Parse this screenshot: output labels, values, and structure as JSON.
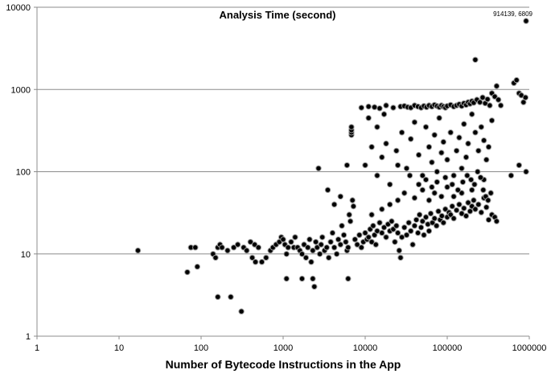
{
  "chart_data": {
    "type": "scatter",
    "title": "Analysis Time (second)",
    "xlabel": "Number of Bytecode Instructions in the App",
    "ylabel": "",
    "x_scale": "log",
    "y_scale": "log",
    "xlim": [
      1,
      1000000
    ],
    "ylim": [
      1,
      10000
    ],
    "x_ticks": [
      "1",
      "10",
      "100",
      "1000",
      "10000",
      "100000",
      "1000000"
    ],
    "y_ticks": [
      "1",
      "10",
      "100",
      "1000",
      "10000"
    ],
    "grid": "horizontal",
    "legend": "none",
    "marker_color": "#000000",
    "annotation": {
      "text": "914139, 6809",
      "x": 914139,
      "y": 6809
    },
    "series": [
      {
        "points": [
          [
            17,
            11
          ],
          [
            68,
            6
          ],
          [
            75,
            12
          ],
          [
            85,
            12
          ],
          [
            90,
            7
          ],
          [
            140,
            10
          ],
          [
            150,
            9
          ],
          [
            160,
            12
          ],
          [
            170,
            13
          ],
          [
            180,
            12
          ],
          [
            160,
            3
          ],
          [
            230,
            3
          ],
          [
            310,
            2
          ],
          [
            210,
            11
          ],
          [
            250,
            12
          ],
          [
            280,
            13
          ],
          [
            330,
            12
          ],
          [
            360,
            11
          ],
          [
            400,
            14
          ],
          [
            450,
            13
          ],
          [
            500,
            12
          ],
          [
            420,
            9
          ],
          [
            460,
            8
          ],
          [
            550,
            8
          ],
          [
            620,
            9
          ],
          [
            700,
            11
          ],
          [
            750,
            12
          ],
          [
            820,
            13
          ],
          [
            900,
            14
          ],
          [
            950,
            16
          ],
          [
            1000,
            15
          ],
          [
            1050,
            13
          ],
          [
            1100,
            10
          ],
          [
            1150,
            12
          ],
          [
            1250,
            14
          ],
          [
            1350,
            12
          ],
          [
            1100,
            5
          ],
          [
            1700,
            5
          ],
          [
            2300,
            5
          ],
          [
            2400,
            4
          ],
          [
            6200,
            5
          ],
          [
            1400,
            16
          ],
          [
            1500,
            12
          ],
          [
            1600,
            11
          ],
          [
            1700,
            10
          ],
          [
            1800,
            13
          ],
          [
            1900,
            9
          ],
          [
            2000,
            12
          ],
          [
            2100,
            15
          ],
          [
            2200,
            8
          ],
          [
            2300,
            11
          ],
          [
            2500,
            14
          ],
          [
            2600,
            12
          ],
          [
            2700,
            110
          ],
          [
            2800,
            10
          ],
          [
            2900,
            13
          ],
          [
            3000,
            16
          ],
          [
            3200,
            11
          ],
          [
            3400,
            12
          ],
          [
            3600,
            9
          ],
          [
            3800,
            14
          ],
          [
            4000,
            18
          ],
          [
            4200,
            12
          ],
          [
            4500,
            10
          ],
          [
            4700,
            15
          ],
          [
            5000,
            13
          ],
          [
            5200,
            22
          ],
          [
            5500,
            17
          ],
          [
            5800,
            14
          ],
          [
            6000,
            11
          ],
          [
            6200,
            12
          ],
          [
            6400,
            30
          ],
          [
            6600,
            25
          ],
          [
            6800,
            280
          ],
          [
            6800,
            300
          ],
          [
            6800,
            320
          ],
          [
            6800,
            350
          ],
          [
            7000,
            45
          ],
          [
            7200,
            38
          ],
          [
            3500,
            60
          ],
          [
            4200,
            40
          ],
          [
            5000,
            50
          ],
          [
            6000,
            120
          ],
          [
            7500,
            15
          ],
          [
            8000,
            13
          ],
          [
            8500,
            17
          ],
          [
            9000,
            12
          ],
          [
            9500,
            14
          ],
          [
            10000,
            18
          ],
          [
            10500,
            15
          ],
          [
            11000,
            16
          ],
          [
            11500,
            20
          ],
          [
            12000,
            14
          ],
          [
            12500,
            22
          ],
          [
            13000,
            17
          ],
          [
            13500,
            13
          ],
          [
            14000,
            19
          ],
          [
            15000,
            24
          ],
          [
            16000,
            18
          ],
          [
            17000,
            21
          ],
          [
            18000,
            16
          ],
          [
            19000,
            23
          ],
          [
            20000,
            19
          ],
          [
            21000,
            25
          ],
          [
            22000,
            20
          ],
          [
            23000,
            14
          ],
          [
            24000,
            22
          ],
          [
            25000,
            18
          ],
          [
            26000,
            11
          ],
          [
            27000,
            9
          ],
          [
            28000,
            16
          ],
          [
            30000,
            21
          ],
          [
            32000,
            17
          ],
          [
            34000,
            24
          ],
          [
            36000,
            19
          ],
          [
            38000,
            13
          ],
          [
            40000,
            22
          ],
          [
            42000,
            26
          ],
          [
            44000,
            18
          ],
          [
            46000,
            30
          ],
          [
            48000,
            21
          ],
          [
            50000,
            25
          ],
          [
            52000,
            17
          ],
          [
            55000,
            28
          ],
          [
            58000,
            23
          ],
          [
            60000,
            19
          ],
          [
            63000,
            31
          ],
          [
            66000,
            24
          ],
          [
            70000,
            27
          ],
          [
            74000,
            22
          ],
          [
            78000,
            33
          ],
          [
            82000,
            26
          ],
          [
            86000,
            29
          ],
          [
            90000,
            24
          ],
          [
            95000,
            35
          ],
          [
            100000,
            28
          ],
          [
            105000,
            32
          ],
          [
            110000,
            30
          ],
          [
            115000,
            38
          ],
          [
            120000,
            27
          ],
          [
            130000,
            34
          ],
          [
            140000,
            40
          ],
          [
            150000,
            31
          ],
          [
            160000,
            36
          ],
          [
            170000,
            29
          ],
          [
            180000,
            42
          ],
          [
            190000,
            33
          ],
          [
            200000,
            38
          ],
          [
            210000,
            45
          ],
          [
            220000,
            35
          ],
          [
            240000,
            40
          ],
          [
            260000,
            32
          ],
          [
            280000,
            48
          ],
          [
            300000,
            37
          ],
          [
            320000,
            26
          ],
          [
            350000,
            30
          ],
          [
            380000,
            28
          ],
          [
            9000,
            600
          ],
          [
            11000,
            620
          ],
          [
            13000,
            610
          ],
          [
            15000,
            590
          ],
          [
            18000,
            640
          ],
          [
            22000,
            600
          ],
          [
            27000,
            620
          ],
          [
            30000,
            630
          ],
          [
            33000,
            610
          ],
          [
            36000,
            600
          ],
          [
            40000,
            640
          ],
          [
            44000,
            620
          ],
          [
            48000,
            600
          ],
          [
            52000,
            630
          ],
          [
            56000,
            610
          ],
          [
            60000,
            640
          ],
          [
            65000,
            620
          ],
          [
            70000,
            650
          ],
          [
            75000,
            630
          ],
          [
            80000,
            610
          ],
          [
            85000,
            640
          ],
          [
            90000,
            620
          ],
          [
            95000,
            600
          ],
          [
            100000,
            630
          ],
          [
            110000,
            650
          ],
          [
            120000,
            620
          ],
          [
            130000,
            640
          ],
          [
            140000,
            660
          ],
          [
            150000,
            630
          ],
          [
            160000,
            680
          ],
          [
            170000,
            650
          ],
          [
            180000,
            700
          ],
          [
            190000,
            670
          ],
          [
            200000,
            720
          ],
          [
            210000,
            690
          ],
          [
            220000,
            2300
          ],
          [
            230000,
            750
          ],
          [
            250000,
            700
          ],
          [
            270000,
            800
          ],
          [
            290000,
            680
          ],
          [
            310000,
            760
          ],
          [
            330000,
            640
          ],
          [
            350000,
            900
          ],
          [
            380000,
            820
          ],
          [
            400000,
            1100
          ],
          [
            420000,
            750
          ],
          [
            450000,
            640
          ],
          [
            650000,
            1200
          ],
          [
            700000,
            1300
          ],
          [
            750000,
            900
          ],
          [
            800000,
            850
          ],
          [
            850000,
            700
          ],
          [
            900000,
            800
          ],
          [
            914139,
            6809
          ],
          [
            914139,
            100
          ],
          [
            600000,
            90
          ],
          [
            750000,
            120
          ],
          [
            400000,
            25
          ],
          [
            10000,
            120
          ],
          [
            12000,
            200
          ],
          [
            14000,
            90
          ],
          [
            16000,
            150
          ],
          [
            18000,
            220
          ],
          [
            20000,
            70
          ],
          [
            24000,
            180
          ],
          [
            28000,
            300
          ],
          [
            32000,
            110
          ],
          [
            36000,
            250
          ],
          [
            40000,
            400
          ],
          [
            45000,
            160
          ],
          [
            50000,
            90
          ],
          [
            55000,
            350
          ],
          [
            60000,
            200
          ],
          [
            65000,
            130
          ],
          [
            70000,
            280
          ],
          [
            75000,
            100
          ],
          [
            80000,
            450
          ],
          [
            85000,
            170
          ],
          [
            90000,
            230
          ],
          [
            100000,
            140
          ],
          [
            110000,
            300
          ],
          [
            120000,
            90
          ],
          [
            130000,
            180
          ],
          [
            140000,
            260
          ],
          [
            150000,
            110
          ],
          [
            160000,
            380
          ],
          [
            170000,
            150
          ],
          [
            180000,
            220
          ],
          [
            200000,
            500
          ],
          [
            220000,
            300
          ],
          [
            240000,
            180
          ],
          [
            260000,
            350
          ],
          [
            280000,
            240
          ],
          [
            300000,
            140
          ],
          [
            320000,
            200
          ],
          [
            350000,
            420
          ],
          [
            280000,
            80
          ],
          [
            200000,
            60
          ],
          [
            150000,
            55
          ],
          [
            120000,
            50
          ],
          [
            100000,
            65
          ],
          [
            85000,
            50
          ],
          [
            70000,
            55
          ],
          [
            60000,
            45
          ],
          [
            50000,
            60
          ],
          [
            40000,
            48
          ],
          [
            30000,
            55
          ],
          [
            25000,
            45
          ],
          [
            20000,
            40
          ],
          [
            16000,
            35
          ],
          [
            12000,
            30
          ],
          [
            11000,
            450
          ],
          [
            14000,
            350
          ],
          [
            17000,
            500
          ],
          [
            25000,
            120
          ],
          [
            35000,
            90
          ],
          [
            45000,
            70
          ],
          [
            55000,
            80
          ],
          [
            65000,
            65
          ],
          [
            75000,
            75
          ],
          [
            95000,
            85
          ],
          [
            115000,
            70
          ],
          [
            135000,
            60
          ],
          [
            155000,
            75
          ],
          [
            175000,
            90
          ],
          [
            195000,
            80
          ],
          [
            215000,
            70
          ],
          [
            235000,
            100
          ],
          [
            255000,
            85
          ],
          [
            275000,
            60
          ],
          [
            295000,
            50
          ],
          [
            315000,
            45
          ],
          [
            340000,
            55
          ]
        ]
      }
    ]
  }
}
